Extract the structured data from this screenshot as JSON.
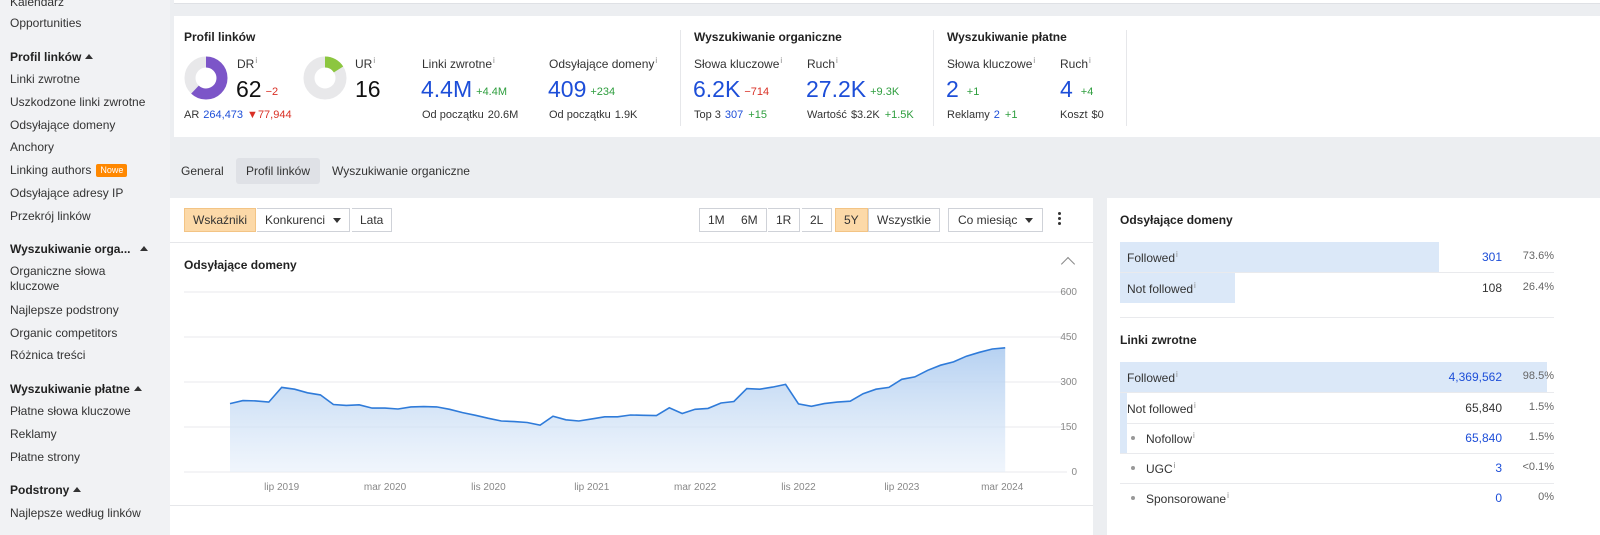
{
  "sidebar": {
    "items_top": [
      "Kalendarz",
      "Opportunities"
    ],
    "sections": [
      {
        "title": "Profil linków",
        "items": [
          "Linki zwrotne",
          "Uszkodzone linki zwrotne",
          "Odsyłające domeny",
          "Anchory",
          "Linking authors",
          "Odsyłające adresy IP",
          "Przekrój linków"
        ],
        "badge": "Nowe"
      },
      {
        "title": "Wyszukiwanie orga...",
        "items": [
          "Organiczne słowa kluczowe",
          "Najlepsze podstrony",
          "Organic competitors",
          "Różnica treści"
        ]
      },
      {
        "title": "Wyszukiwanie płatne",
        "items": [
          "Płatne słowa kluczowe",
          "Reklamy",
          "Płatne strony"
        ]
      },
      {
        "title": "Podstrony",
        "items": [
          "Najlepsze według linków"
        ]
      }
    ]
  },
  "metrics": {
    "profile": {
      "title": "Profil linków",
      "dr": {
        "label": "DR",
        "value": "62",
        "delta": "−2",
        "ring_fraction": 0.62
      },
      "ur": {
        "label": "UR",
        "value": "16",
        "ring_fraction": 0.16
      },
      "ar": {
        "label": "AR",
        "value": "264,473",
        "delta": "77,944"
      },
      "backlinks": {
        "label": "Linki zwrotne",
        "value": "4.4M",
        "delta": "+4.4M",
        "sub_label": "Od początku",
        "sub_value": "20.6M"
      },
      "refdomains": {
        "label": "Odsyłające domeny",
        "value": "409",
        "delta": "+234",
        "sub_label": "Od początku",
        "sub_value": "1.9K"
      }
    },
    "organic": {
      "title": "Wyszukiwanie organiczne",
      "keywords": {
        "label": "Słowa kluczowe",
        "value": "6.2K",
        "delta": "−714",
        "sub_label": "Top 3",
        "sub_value": "307",
        "sub_delta": "+15"
      },
      "traffic": {
        "label": "Ruch",
        "value": "27.2K",
        "delta": "+9.3K",
        "sub_label": "Wartość",
        "sub_value": "$3.2K",
        "sub_delta": "+1.5K"
      }
    },
    "paid": {
      "title": "Wyszukiwanie płatne",
      "keywords": {
        "label": "Słowa kluczowe",
        "value": "2",
        "delta": "+1",
        "sub_label": "Reklamy",
        "sub_value": "2",
        "sub_delta": "+1"
      },
      "traffic": {
        "label": "Ruch",
        "value": "4",
        "delta": "+4",
        "sub_label": "Koszt",
        "sub_value": "$0"
      }
    },
    "info": "i"
  },
  "tabs": [
    "General",
    "Profil linków",
    "Wyszukiwanie organiczne"
  ],
  "toolbar": {
    "mode_buttons": [
      "Wskaźniki",
      "Konkurenci",
      "Lata"
    ],
    "ranges": [
      "1M",
      "6M",
      "1R",
      "2L",
      "5Y",
      "Wszystkie"
    ],
    "interval": "Co miesiąc"
  },
  "chart_data": {
    "type": "area",
    "title": "Odsyłające domeny",
    "x_ticks": [
      "lip 2019",
      "mar 2020",
      "lis 2020",
      "lip 2021",
      "mar 2022",
      "lis 2022",
      "lip 2023",
      "mar 2024"
    ],
    "y_ticks": [
      "0",
      "150",
      "300",
      "450",
      "600"
    ],
    "ylim": [
      0,
      600
    ],
    "x": [
      "2019-03",
      "2019-04",
      "2019-05",
      "2019-06",
      "2019-07",
      "2019-08",
      "2019-09",
      "2019-10",
      "2019-11",
      "2019-12",
      "2020-01",
      "2020-02",
      "2020-03",
      "2020-04",
      "2020-05",
      "2020-06",
      "2020-07",
      "2020-08",
      "2020-09",
      "2020-10",
      "2020-11",
      "2020-12",
      "2021-01",
      "2021-02",
      "2021-03",
      "2021-04",
      "2021-05",
      "2021-06",
      "2021-07",
      "2021-08",
      "2021-09",
      "2021-10",
      "2021-11",
      "2021-12",
      "2022-01",
      "2022-02",
      "2022-03",
      "2022-04",
      "2022-05",
      "2022-06",
      "2022-07",
      "2022-08",
      "2022-09",
      "2022-10",
      "2022-11",
      "2022-12",
      "2023-01",
      "2023-02",
      "2023-03",
      "2023-04",
      "2023-05",
      "2023-06",
      "2023-07",
      "2023-08",
      "2023-09",
      "2023-10",
      "2023-11",
      "2023-12",
      "2024-01",
      "2024-02",
      "2024-03"
    ],
    "values": [
      228,
      238,
      237,
      233,
      282,
      276,
      264,
      257,
      225,
      222,
      224,
      213,
      213,
      210,
      217,
      218,
      217,
      209,
      198,
      189,
      179,
      170,
      168,
      165,
      156,
      186,
      174,
      170,
      177,
      184,
      184,
      190,
      189,
      188,
      214,
      195,
      209,
      212,
      230,
      235,
      278,
      276,
      283,
      292,
      227,
      219,
      228,
      233,
      236,
      261,
      276,
      282,
      309,
      317,
      339,
      356,
      367,
      386,
      399,
      410,
      414
    ],
    "series_color": "#2f7bd9"
  },
  "right_panel": {
    "refdomains": {
      "title": "Odsyłające domeny",
      "rows": [
        {
          "label": "Followed",
          "value": "301",
          "pct": "73.6%",
          "fraction": 0.736
        },
        {
          "label": "Not followed",
          "value": "108",
          "pct": "26.4%",
          "fraction": 0.264
        }
      ]
    },
    "backlinks": {
      "title": "Linki zwrotne",
      "rows": [
        {
          "label": "Followed",
          "value": "4,369,562",
          "pct": "98.5%",
          "fraction": 0.985
        },
        {
          "label": "Not followed",
          "value": "65,840",
          "pct": "1.5%",
          "fraction": 0.015
        },
        {
          "label": "Nofollow",
          "value": "65,840",
          "pct": "1.5%",
          "fraction": 0.015
        },
        {
          "label": "UGC",
          "value": "3",
          "pct": "<0.1%",
          "fraction": 0.0
        },
        {
          "label": "Sponsorowane",
          "value": "0",
          "pct": "0%",
          "fraction": 0.0
        }
      ]
    }
  }
}
